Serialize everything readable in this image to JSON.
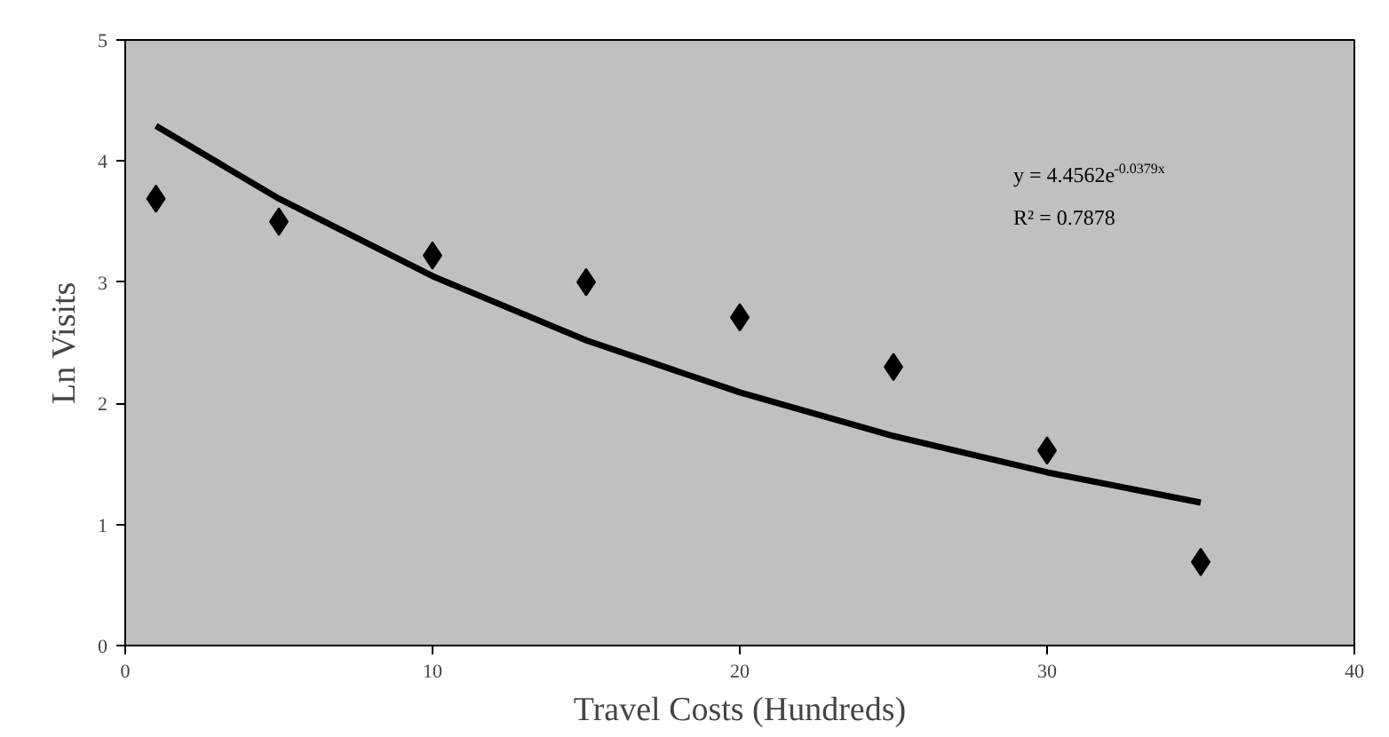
{
  "chart_data": {
    "type": "scatter",
    "xlabel": "Travel Costs (Hundreds)",
    "ylabel": "Ln Visits",
    "xlim": [
      0,
      40
    ],
    "ylim": [
      0,
      5
    ],
    "xticks": [
      0,
      10,
      20,
      30,
      40
    ],
    "yticks": [
      0,
      1,
      2,
      3,
      4,
      5
    ],
    "grid": false,
    "series": [
      {
        "marker": "diamond",
        "color": "#000000",
        "x": [
          1,
          5,
          10,
          15,
          20,
          25,
          30,
          35
        ],
        "values": [
          3.69,
          3.5,
          3.22,
          3.0,
          2.71,
          2.3,
          1.61,
          0.69
        ]
      },
      {
        "type": "line",
        "color": "#000000",
        "x": [
          1,
          5,
          10,
          15,
          20,
          25,
          30,
          35
        ],
        "values": [
          4.29,
          3.69,
          3.05,
          2.52,
          2.09,
          1.73,
          1.43,
          1.18
        ]
      }
    ],
    "annotations": [
      "y = 4.4562e$^{-0.0379x}$",
      "R² = 0.7878"
    ]
  }
}
